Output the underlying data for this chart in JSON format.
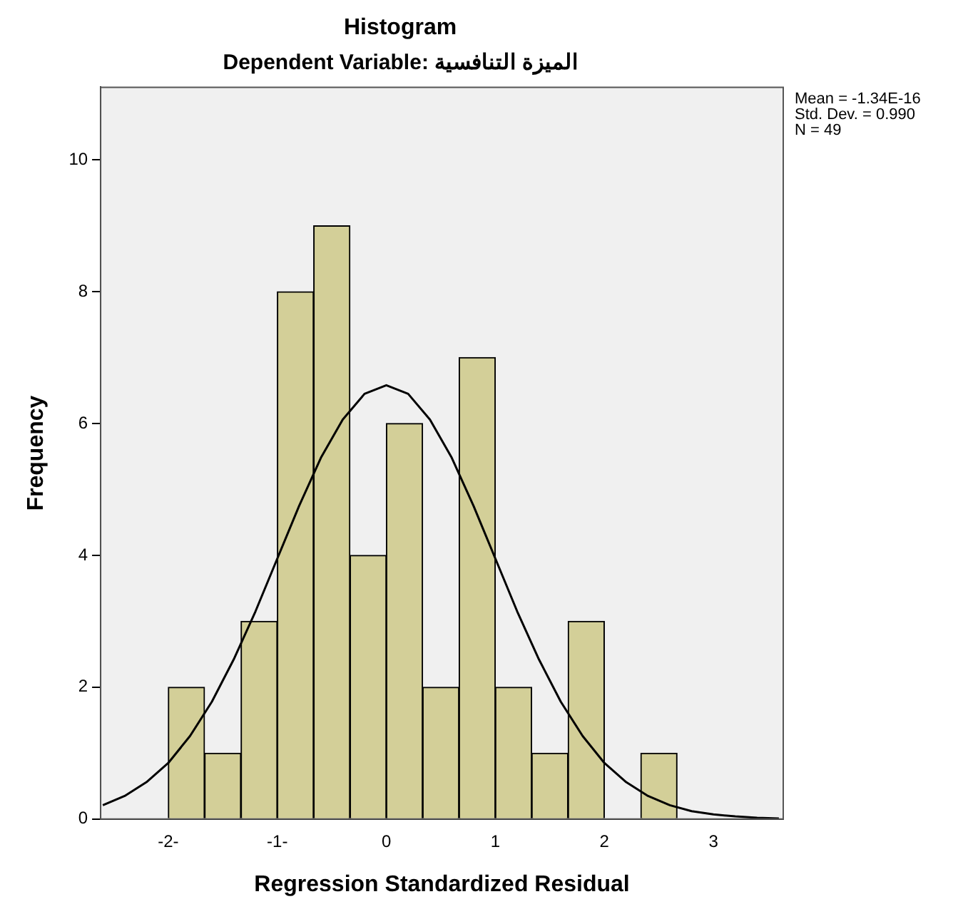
{
  "chart_data": {
    "type": "histogram",
    "title": "Histogram",
    "subtitle": "Dependent Variable: الميزة التنافسية",
    "xlabel": "Regression Standardized Residual",
    "ylabel": "Frequency",
    "bins": [
      -2,
      -1.667,
      -1.333,
      -1,
      -0.667,
      -0.333,
      0,
      0.333,
      0.667,
      1,
      1.333,
      1.667,
      2,
      2.333,
      2.667
    ],
    "values": [
      2,
      1,
      3,
      8,
      9,
      4,
      6,
      2,
      7,
      2,
      1,
      3,
      0,
      1
    ],
    "color": "#d3cf98",
    "series": [
      {
        "type": "line",
        "color": "#000000",
        "x": [
          -2.6,
          -2.4,
          -2.2,
          -2,
          -1.8,
          -1.6,
          -1.4,
          -1.2,
          -1,
          -0.8,
          -0.6,
          -0.4,
          -0.2,
          0,
          0.2,
          0.4,
          0.6,
          0.8,
          1,
          1.2,
          1.4,
          1.6,
          1.8,
          2,
          2.2,
          2.4,
          2.6,
          2.8,
          3,
          3.2,
          3.4,
          3.6
        ],
        "values": [
          0.21,
          0.35,
          0.56,
          0.85,
          1.26,
          1.78,
          2.42,
          3.15,
          3.95,
          4.75,
          5.48,
          6.06,
          6.45,
          6.58,
          6.45,
          6.06,
          5.48,
          4.75,
          3.95,
          3.15,
          2.42,
          1.78,
          1.26,
          0.85,
          0.56,
          0.35,
          0.21,
          0.12,
          0.07,
          0.04,
          0.02,
          0.01
        ]
      }
    ],
    "xlim": [
      -2.62,
      3.64
    ],
    "xticks": [
      {
        "value": -2,
        "label": "-2-"
      },
      {
        "value": -1,
        "label": "-1-"
      },
      0,
      1,
      2,
      3
    ],
    "ylim": [
      0,
      11.1
    ],
    "yticks": [
      0,
      2,
      4,
      6,
      8,
      10
    ],
    "annotations": [
      "Mean = -1.34E-16",
      "Std. Dev. = 0.990",
      "N = 49"
    ],
    "grid": false,
    "legend": false,
    "marker": "none"
  }
}
